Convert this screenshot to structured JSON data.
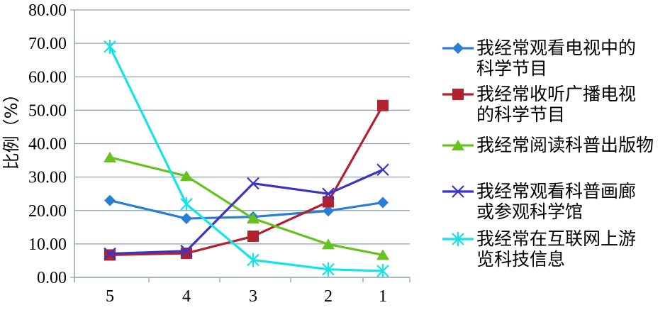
{
  "chart_data": {
    "type": "line",
    "categories": [
      "5",
      "4",
      "3",
      "2",
      "1"
    ],
    "ylabel": "比例（%）",
    "ylim": [
      0,
      80
    ],
    "yticks": [
      "0.00",
      "10.00",
      "20.00",
      "30.00",
      "40.00",
      "50.00",
      "60.00",
      "70.00",
      "80.00"
    ],
    "grid": true,
    "legend_position": "right",
    "series": [
      {
        "name": "我经常观看电视中的科学节目",
        "label_lines": [
          "我经常观看电视中的",
          "科学节目"
        ],
        "color": "#2a7fd4",
        "marker": "diamond",
        "values": [
          23.0,
          17.6,
          18.1,
          19.9,
          22.4
        ]
      },
      {
        "name": "我经常收听广播电视的科学节目",
        "label_lines": [
          "我经常收听广播电视",
          "的科学节目"
        ],
        "color": "#b3202f",
        "marker": "square",
        "values": [
          6.7,
          7.2,
          12.3,
          22.6,
          51.4
        ]
      },
      {
        "name": "我经常阅读科普出版物",
        "label_lines": [
          "我经常阅读科普出版物"
        ],
        "color": "#66c21d",
        "marker": "triangle",
        "values": [
          35.9,
          30.3,
          17.6,
          9.9,
          6.7
        ]
      },
      {
        "name": "我经常观看科普画廊或参观科学馆",
        "label_lines": [
          "我经常观看科普画廊",
          "或参观科学馆"
        ],
        "color": "#3a33c4",
        "marker": "x",
        "values": [
          7.1,
          7.9,
          28.1,
          25.0,
          32.2
        ]
      },
      {
        "name": "我经常在互联网上游览科技信息",
        "label_lines": [
          "我经常在互联网上游",
          "览科技信息"
        ],
        "color": "#15e3e8",
        "marker": "star",
        "values": [
          69.0,
          21.9,
          5.2,
          2.4,
          1.9
        ]
      }
    ]
  }
}
